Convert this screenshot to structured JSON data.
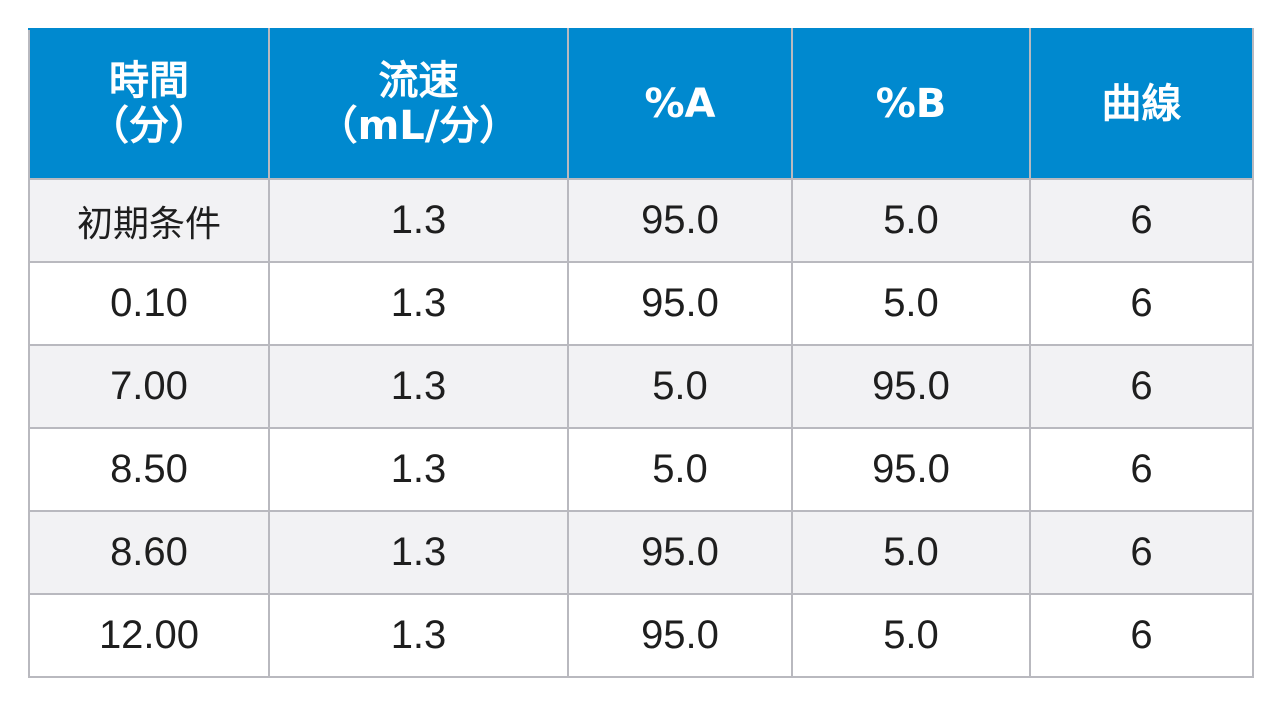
{
  "table": {
    "headers": [
      {
        "line1": "時間",
        "line2": "（分）"
      },
      {
        "line1": "流速",
        "line2": "（mL/分）"
      },
      {
        "line1": "%A",
        "line2": ""
      },
      {
        "line1": "%B",
        "line2": ""
      },
      {
        "line1": "曲線",
        "line2": ""
      }
    ],
    "rows": [
      [
        "初期条件",
        "1.3",
        "95.0",
        "5.0",
        "6"
      ],
      [
        "0.10",
        "1.3",
        "95.0",
        "5.0",
        "6"
      ],
      [
        "7.00",
        "1.3",
        "5.0",
        "95.0",
        "6"
      ],
      [
        "8.50",
        "1.3",
        "5.0",
        "95.0",
        "6"
      ],
      [
        "8.60",
        "1.3",
        "95.0",
        "5.0",
        "6"
      ],
      [
        "12.00",
        "1.3",
        "95.0",
        "5.0",
        "6"
      ]
    ]
  },
  "colors": {
    "header_background": "#0089cf",
    "header_text": "#ffffff",
    "row_alt_background": "#f2f2f4",
    "grid_line": "#b9b9bf"
  }
}
